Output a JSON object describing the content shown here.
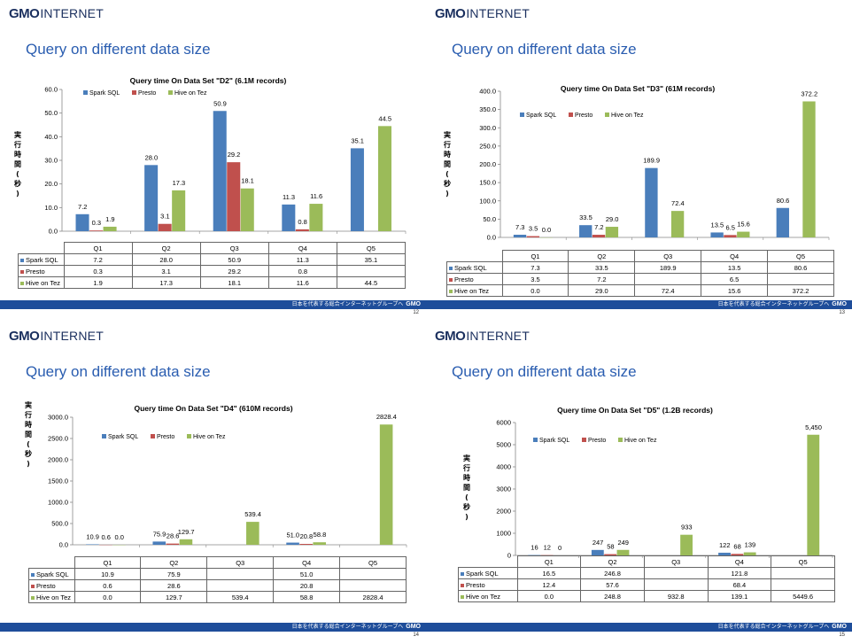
{
  "branding": {
    "logo_gmo": "GMO",
    "logo_internet": "INTERNET",
    "footer_text": "日本を代表する総合インターネットグループへ",
    "footer_logo": "GMO"
  },
  "colors": {
    "spark": "#4a7ebb",
    "presto": "#c0504d",
    "hive": "#9bbb59",
    "footer": "#1e4d9a",
    "title": "#2a5db0"
  },
  "slides": [
    {
      "title": "Query on different data size",
      "page": "12",
      "chart": {
        "title": "Query time On Data Set \"D2\" (6.1M records)",
        "ylabel": "実行時間(秒)",
        "legend": [
          "Spark SQL",
          "Presto",
          "Hive on Tez"
        ],
        "ticks": [
          "0.0",
          "10.0",
          "20.0",
          "30.0",
          "40.0",
          "50.0",
          "60.0"
        ],
        "categories": [
          "Q1",
          "Q2",
          "Q3",
          "Q4",
          "Q5"
        ],
        "bar_labels": [
          [
            "7.2",
            "0.3",
            "1.9"
          ],
          [
            "28.0",
            "3.1",
            "17.3"
          ],
          [
            "50.9",
            "29.2",
            "18.1"
          ],
          [
            "11.3",
            "0.8",
            "11.6"
          ],
          [
            "35.1",
            "",
            "44.5"
          ]
        ],
        "table": [
          [
            "7.2",
            "28.0",
            "50.9",
            "11.3",
            "35.1"
          ],
          [
            "0.3",
            "3.1",
            "29.2",
            "0.8",
            ""
          ],
          [
            "1.9",
            "17.3",
            "18.1",
            "11.6",
            "44.5"
          ]
        ]
      }
    },
    {
      "title": "Query on different data size",
      "page": "13",
      "chart": {
        "title": "Query time On Data Set \"D3\" (61M records)",
        "ylabel": "実行時間(秒)",
        "legend": [
          "Spark SQL",
          "Presto",
          "Hive on Tez"
        ],
        "ticks": [
          "0.0",
          "50.0",
          "100.0",
          "150.0",
          "200.0",
          "250.0",
          "300.0",
          "350.0",
          "400.0"
        ],
        "categories": [
          "Q1",
          "Q2",
          "Q3",
          "Q4",
          "Q5"
        ],
        "bar_labels": [
          [
            "7.3",
            "3.5",
            "0.0"
          ],
          [
            "33.5",
            "7.2",
            "29.0"
          ],
          [
            "189.9",
            "",
            "72.4"
          ],
          [
            "13.5",
            "6.5",
            "15.6"
          ],
          [
            "80.6",
            "",
            "372.2"
          ]
        ],
        "table": [
          [
            "7.3",
            "33.5",
            "189.9",
            "13.5",
            "80.6"
          ],
          [
            "3.5",
            "7.2",
            "",
            "6.5",
            ""
          ],
          [
            "0.0",
            "29.0",
            "72.4",
            "15.6",
            "372.2"
          ]
        ]
      }
    },
    {
      "title": "Query on different data size",
      "page": "14",
      "chart": {
        "title": "Query time On Data Set \"D4\" (610M records)",
        "ylabel": "実行時間(秒)",
        "legend": [
          "Spark SQL",
          "Presto",
          "Hive on Tez"
        ],
        "ticks": [
          "0.0",
          "500.0",
          "1000.0",
          "1500.0",
          "2000.0",
          "2500.0",
          "3000.0"
        ],
        "categories": [
          "Q1",
          "Q2",
          "Q3",
          "Q4",
          "Q5"
        ],
        "bar_labels": [
          [
            "10.9",
            "0.6",
            "0.0"
          ],
          [
            "75.9",
            "28.6",
            "129.7"
          ],
          [
            "",
            "",
            "539.4"
          ],
          [
            "51.0",
            "20.8",
            "58.8"
          ],
          [
            "",
            "",
            "2828.4"
          ]
        ],
        "table": [
          [
            "10.9",
            "75.9",
            "",
            "51.0",
            ""
          ],
          [
            "0.6",
            "28.6",
            "",
            "20.8",
            ""
          ],
          [
            "0.0",
            "129.7",
            "539.4",
            "58.8",
            "2828.4"
          ]
        ]
      }
    },
    {
      "title": "Query on different data size",
      "page": "15",
      "chart": {
        "title": "Query time On Data Set \"D5\" (1.2B records)",
        "ylabel": "実行時間(秒)",
        "legend": [
          "Spark SQL",
          "Presto",
          "Hive on Tez"
        ],
        "ticks": [
          "0",
          "1000",
          "2000",
          "3000",
          "4000",
          "5000",
          "6000"
        ],
        "categories": [
          "Q1",
          "Q2",
          "Q3",
          "Q4",
          "Q5"
        ],
        "bar_labels": [
          [
            "16",
            "12",
            "0"
          ],
          [
            "247",
            "58",
            "249"
          ],
          [
            "",
            "",
            "933"
          ],
          [
            "122",
            "68",
            "139"
          ],
          [
            "",
            "",
            "5,450"
          ]
        ],
        "table": [
          [
            "16.5",
            "246.8",
            "",
            "121.8",
            ""
          ],
          [
            "12.4",
            "57.6",
            "",
            "68.4",
            ""
          ],
          [
            "0.0",
            "248.8",
            "932.8",
            "139.1",
            "5449.6"
          ]
        ]
      }
    }
  ],
  "chart_data": [
    {
      "type": "bar",
      "title": "Query time On Data Set \"D2\" (6.1M records)",
      "ylabel": "実行時間(秒)",
      "ylim": [
        0,
        60
      ],
      "categories": [
        "Q1",
        "Q2",
        "Q3",
        "Q4",
        "Q5"
      ],
      "series": [
        {
          "name": "Spark SQL",
          "values": [
            7.2,
            28.0,
            50.9,
            11.3,
            35.1
          ]
        },
        {
          "name": "Presto",
          "values": [
            0.3,
            3.1,
            29.2,
            0.8,
            null
          ]
        },
        {
          "name": "Hive on Tez",
          "values": [
            1.9,
            17.3,
            18.1,
            11.6,
            44.5
          ]
        }
      ],
      "legend": "top-left",
      "grid": false
    },
    {
      "type": "bar",
      "title": "Query time On Data Set \"D3\" (61M records)",
      "ylabel": "実行時間(秒)",
      "ylim": [
        0,
        400
      ],
      "categories": [
        "Q1",
        "Q2",
        "Q3",
        "Q4",
        "Q5"
      ],
      "series": [
        {
          "name": "Spark SQL",
          "values": [
            7.3,
            33.5,
            189.9,
            13.5,
            80.6
          ]
        },
        {
          "name": "Presto",
          "values": [
            3.5,
            7.2,
            null,
            6.5,
            null
          ]
        },
        {
          "name": "Hive on Tez",
          "values": [
            0.0,
            29.0,
            72.4,
            15.6,
            372.2
          ]
        }
      ],
      "legend": "top-left",
      "grid": false
    },
    {
      "type": "bar",
      "title": "Query time On Data Set \"D4\" (610M records)",
      "ylabel": "実行時間(秒)",
      "ylim": [
        0,
        3000
      ],
      "categories": [
        "Q1",
        "Q2",
        "Q3",
        "Q4",
        "Q5"
      ],
      "series": [
        {
          "name": "Spark SQL",
          "values": [
            10.9,
            75.9,
            null,
            51.0,
            null
          ]
        },
        {
          "name": "Presto",
          "values": [
            0.6,
            28.6,
            null,
            20.8,
            null
          ]
        },
        {
          "name": "Hive on Tez",
          "values": [
            0.0,
            129.7,
            539.4,
            58.8,
            2828.4
          ]
        }
      ],
      "legend": "top-left",
      "grid": false
    },
    {
      "type": "bar",
      "title": "Query time On Data Set \"D5\" (1.2B records)",
      "ylabel": "実行時間(秒)",
      "ylim": [
        0,
        6000
      ],
      "categories": [
        "Q1",
        "Q2",
        "Q3",
        "Q4",
        "Q5"
      ],
      "series": [
        {
          "name": "Spark SQL",
          "values": [
            16.5,
            246.8,
            null,
            121.8,
            null
          ]
        },
        {
          "name": "Presto",
          "values": [
            12.4,
            57.6,
            null,
            68.4,
            null
          ]
        },
        {
          "name": "Hive on Tez",
          "values": [
            0.0,
            248.8,
            932.8,
            139.1,
            5449.6
          ]
        }
      ],
      "legend": "top-left",
      "grid": false
    }
  ]
}
